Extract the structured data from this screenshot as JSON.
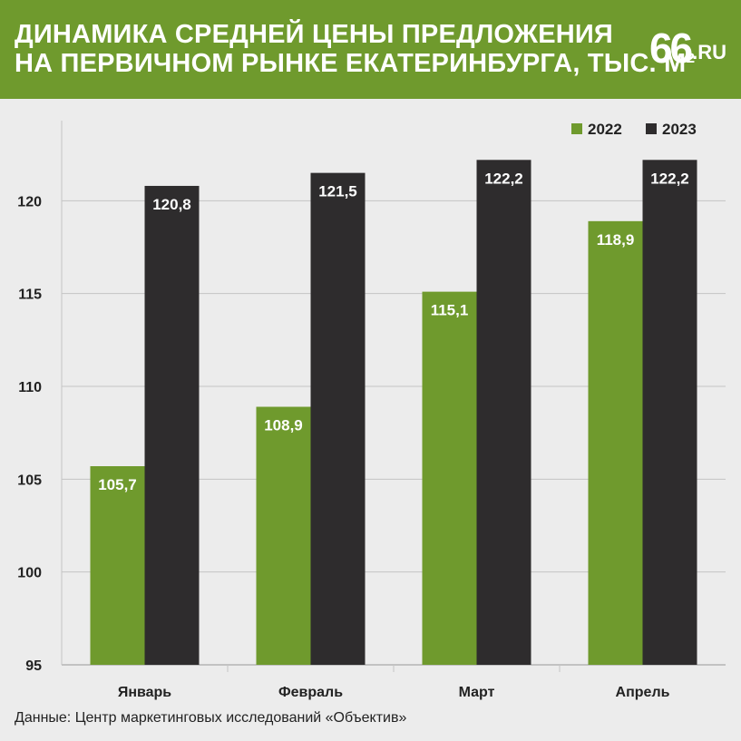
{
  "header": {
    "title_line1": "ДИНАМИКА СРЕДНЕЙ ЦЕНЫ ПРЕДЛОЖЕНИЯ",
    "title_line2": "НА ПЕРВИЧНОМ РЫНКЕ ЕКАТЕРИНБУРГА, ТЫС. М²",
    "logo_number": "66",
    "logo_domain": ".RU"
  },
  "source": "Данные: Центр маркетинговых исследований «Объектив»",
  "colors": {
    "header_bg": "#6f9a2d",
    "series_2022": "#6f9a2d",
    "series_2023": "#2e2c2d",
    "background": "#ececec"
  },
  "chart_data": {
    "type": "bar",
    "categories": [
      "Январь",
      "Февраль",
      "Март",
      "Апрель"
    ],
    "series": [
      {
        "name": "2022",
        "values": [
          105.7,
          108.9,
          115.1,
          118.9
        ],
        "labels": [
          "105,7",
          "108,9",
          "115,1",
          "118,9"
        ]
      },
      {
        "name": "2023",
        "values": [
          120.8,
          121.5,
          122.2,
          122.2
        ],
        "labels": [
          "120,8",
          "121,5",
          "122,2",
          "122,2"
        ]
      }
    ],
    "yticks": [
      "95",
      "100",
      "105",
      "110",
      "115",
      "120"
    ],
    "ytick_values": [
      95,
      100,
      105,
      110,
      115,
      120
    ],
    "ylim": [
      95,
      125
    ],
    "grid": true,
    "legend": "top-right"
  }
}
